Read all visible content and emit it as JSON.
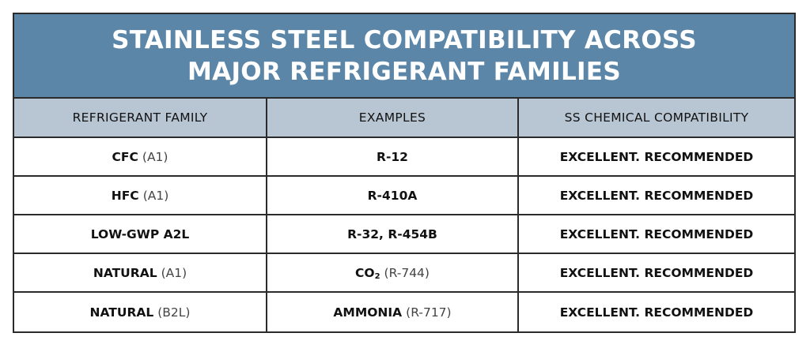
{
  "title": {
    "line1": "STAINLESS STEEL COMPATIBILITY ACROSS",
    "line2": "MAJOR REFRIGERANT FAMILIES"
  },
  "colors": {
    "title_band": "#5b86a7",
    "header_row": "#b8c6d4",
    "border": "#2b2b2b"
  },
  "columns": [
    "REFRIGERANT FAMILY",
    "EXAMPLES",
    "SS CHEMICAL COMPATIBILITY"
  ],
  "rows": [
    {
      "family": "CFC",
      "family_class": "(A1)",
      "example": "R-12",
      "example_sub": "",
      "example_extra": "",
      "compatibility": "EXCELLENT. RECOMMENDED"
    },
    {
      "family": "HFC",
      "family_class": "(A1)",
      "example": "R-410A",
      "example_sub": "",
      "example_extra": "",
      "compatibility": "EXCELLENT. RECOMMENDED"
    },
    {
      "family": "LOW-GWP A2L",
      "family_class": "",
      "example": "R-32, R-454B",
      "example_sub": "",
      "example_extra": "",
      "compatibility": "EXCELLENT. RECOMMENDED"
    },
    {
      "family": "NATURAL",
      "family_class": "(A1)",
      "example": "CO",
      "example_sub": "2",
      "example_extra": "(R-744)",
      "compatibility": "EXCELLENT. RECOMMENDED"
    },
    {
      "family": "NATURAL",
      "family_class": "(B2L)",
      "example": "AMMONIA",
      "example_sub": "",
      "example_extra": "(R-717)",
      "compatibility": "EXCELLENT. RECOMMENDED"
    }
  ]
}
